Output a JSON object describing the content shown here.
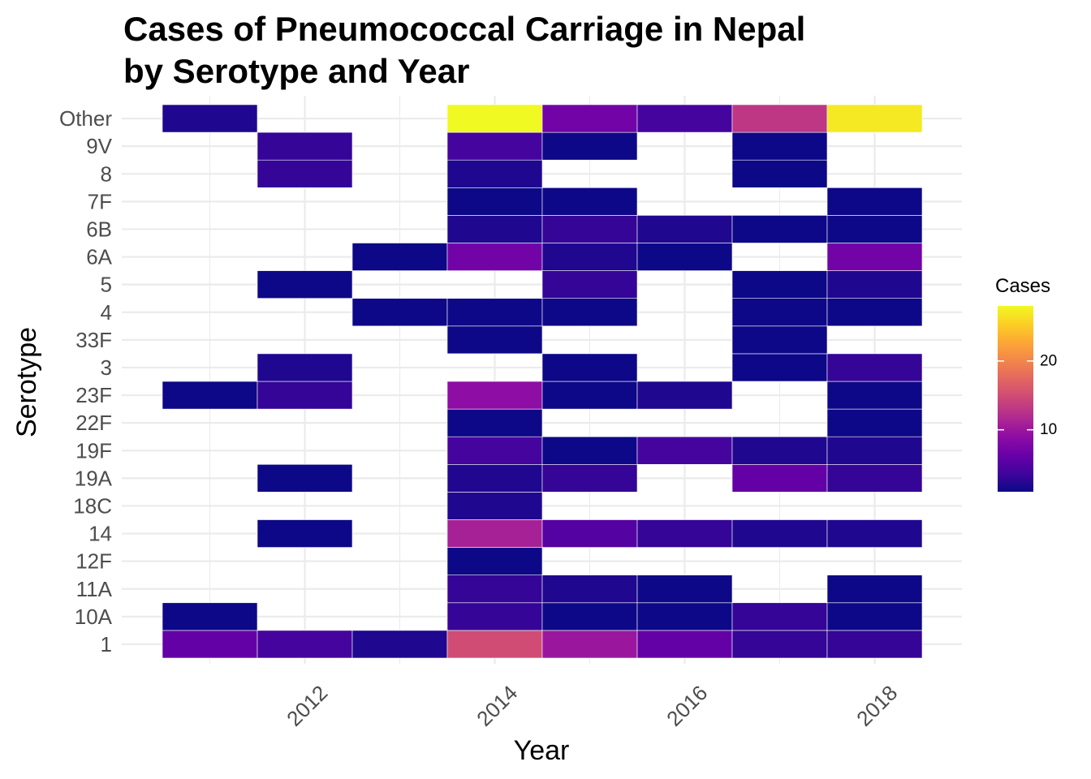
{
  "chart_data": {
    "type": "heatmap",
    "title_lines": [
      "Cases of Pneumococcal Carriage in Nepal",
      "by Serotype and Year"
    ],
    "xlabel": "Year",
    "ylabel": "Serotype",
    "x": [
      2011,
      2012,
      2013,
      2014,
      2015,
      2016,
      2017,
      2018
    ],
    "x_ticks": [
      "2012",
      "2014",
      "2016",
      "2018"
    ],
    "x_tick_values": [
      2012,
      2014,
      2016,
      2018
    ],
    "y": [
      "1",
      "10A",
      "11A",
      "12F",
      "14",
      "18C",
      "19A",
      "19F",
      "22F",
      "23F",
      "3",
      "33F",
      "4",
      "5",
      "6A",
      "6B",
      "7F",
      "8",
      "9V",
      "Other"
    ],
    "values": {
      "1": [
        6,
        4,
        2,
        15,
        10,
        6,
        3,
        3
      ],
      "10A": [
        1,
        null,
        null,
        3,
        1,
        1,
        3,
        1
      ],
      "11A": [
        null,
        null,
        null,
        3,
        2,
        1,
        null,
        1
      ],
      "12F": [
        null,
        null,
        null,
        1,
        null,
        null,
        null,
        null
      ],
      "14": [
        null,
        1,
        null,
        11,
        5,
        3,
        2,
        2
      ],
      "18C": [
        null,
        null,
        null,
        2,
        null,
        null,
        null,
        null
      ],
      "19A": [
        null,
        1,
        null,
        2,
        3,
        null,
        6,
        3
      ],
      "19F": [
        null,
        null,
        null,
        4,
        1,
        4,
        2,
        2
      ],
      "22F": [
        null,
        null,
        null,
        1,
        null,
        null,
        null,
        1
      ],
      "23F": [
        1,
        3,
        null,
        9,
        1,
        2,
        null,
        1
      ],
      "3": [
        null,
        2,
        null,
        null,
        1,
        null,
        1,
        3
      ],
      "33F": [
        null,
        null,
        null,
        1,
        null,
        null,
        1,
        null
      ],
      "4": [
        null,
        null,
        1,
        1,
        1,
        null,
        1,
        1
      ],
      "5": [
        null,
        1,
        null,
        null,
        3,
        null,
        1,
        2
      ],
      "6A": [
        null,
        null,
        1,
        7,
        2,
        1,
        null,
        7
      ],
      "6B": [
        null,
        null,
        null,
        2,
        3,
        2,
        1,
        1
      ],
      "7F": [
        null,
        null,
        null,
        1,
        1,
        null,
        null,
        1
      ],
      "8": [
        null,
        3,
        null,
        2,
        null,
        null,
        1,
        null
      ],
      "9V": [
        null,
        3,
        null,
        4,
        1,
        null,
        1,
        null
      ],
      "Other": [
        2,
        null,
        null,
        28,
        7,
        4,
        13,
        27
      ]
    },
    "color_scale": "plasma",
    "color_range": [
      1,
      28
    ],
    "legend_title": "Cases",
    "legend_ticks": [
      10,
      20
    ],
    "legend_position": "right",
    "grid": true
  }
}
